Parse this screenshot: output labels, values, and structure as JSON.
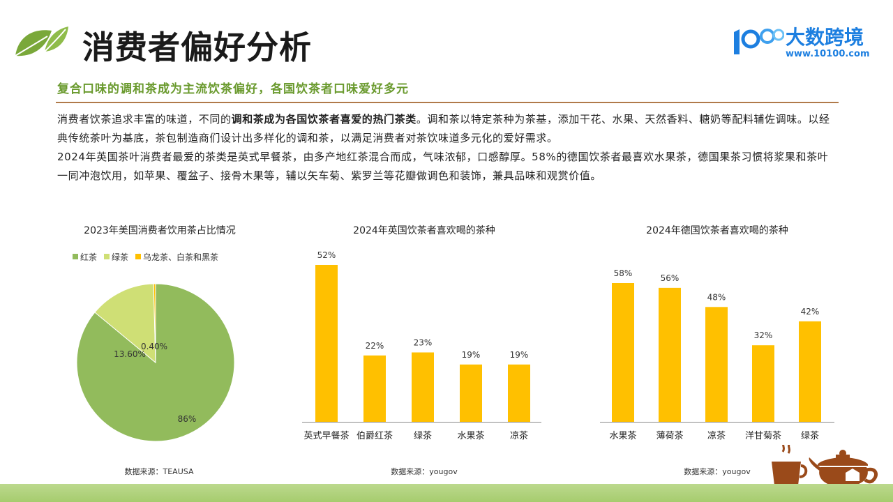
{
  "header": {
    "title": "消费者偏好分析",
    "subtitle": "复合口味的调和茶成为主流饮茶偏好，各国饮茶者口味爱好多元",
    "logo_text": "大数跨境",
    "logo_url": "www.10100.com"
  },
  "body": {
    "p1_a": "消费者饮茶追求丰富的味道，不同的",
    "p1_bold": "调和茶成为各国饮茶者喜爱的热门茶类",
    "p1_b": "。调和茶以特定茶种为茶基，添加干花、水果、天然香料、糖奶等配料辅佐调味。以经典传统茶叶为基底，茶包制造商们设计出多样化的调和茶，以满足消费者对茶饮味道多元化的爱好需求。",
    "p2": "2024年英国茶叶消费者最爱的茶类是英式早餐茶，由多产地红茶混合而成，气味浓郁，口感醇厚。58%的德国饮茶者最喜欢水果茶，德国果茶习惯将浆果和茶叶一同冲泡饮用，如苹果、覆盆子、接骨木果等，辅以矢车菊、紫罗兰等花瓣做调色和装饰，兼具品味和观赏价值。"
  },
  "colors": {
    "accent_green": "#6a9a2e",
    "divider_brown": "#b07a4a",
    "bar_yellow": "#ffc000",
    "pie_green": "#92bb5c",
    "pie_light_green": "#cfdf75",
    "pie_yellow": "#ffc000",
    "logo_blue": "#1d7fe0"
  },
  "chart_data": [
    {
      "type": "pie",
      "title": "2023年美国消费者饮用茶占比情况",
      "labels": [
        "红茶",
        "绿茶",
        "乌龙茶、白茶和黑茶"
      ],
      "values": [
        86,
        13.6,
        0.4
      ],
      "data_labels": [
        "86%",
        "13.60%",
        "0.40%"
      ],
      "legend_position": "top-left",
      "source": "数据来源：TEAUSA"
    },
    {
      "type": "bar",
      "title": "2024年英国饮茶者喜欢喝的茶种",
      "categories": [
        "英式早餐茶",
        "伯爵红茶",
        "绿茶",
        "水果茶",
        "凉茶"
      ],
      "values": [
        52,
        22,
        23,
        19,
        19
      ],
      "data_labels": [
        "52%",
        "22%",
        "23%",
        "19%",
        "19%"
      ],
      "ylim": [
        0,
        52
      ],
      "source": "数据来源：yougov"
    },
    {
      "type": "bar",
      "title": "2024年德国饮茶者喜欢喝的茶种",
      "categories": [
        "水果茶",
        "薄荷茶",
        "凉茶",
        "洋甘菊茶",
        "绿茶"
      ],
      "values": [
        58,
        56,
        48,
        32,
        42
      ],
      "data_labels": [
        "58%",
        "56%",
        "48%",
        "32%",
        "42%"
      ],
      "ylim": [
        0,
        58
      ],
      "source": "数据来源：yougov"
    }
  ]
}
